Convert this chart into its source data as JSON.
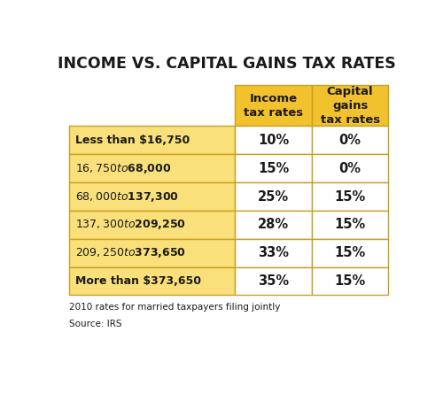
{
  "title": "INCOME VS. CAPITAL GAINS TAX RATES",
  "col_headers": [
    "Income\ntax rates",
    "Capital\ngains\ntax rates"
  ],
  "row_labels": [
    "Less than $16,750",
    "$16,750 to $68,000",
    "$68,000 to $137,300",
    "$137,300 to $209,250",
    "$209,250 to $373,650",
    "More than $373,650"
  ],
  "income_tax": [
    "10%",
    "15%",
    "25%",
    "28%",
    "33%",
    "35%"
  ],
  "capital_gains_tax": [
    "0%",
    "0%",
    "15%",
    "15%",
    "15%",
    "15%"
  ],
  "footnote": "2010 rates for married taxpayers filing jointly",
  "source": "Source: IRS",
  "bg_color": "#FFFFFF",
  "header_bg": "#F2C12E",
  "row_label_bg": "#F9E07A",
  "cell_bg": "#FFFFFF",
  "border_color": "#C8A020",
  "title_color": "#1A1A1A",
  "text_color": "#1A1A1A",
  "header_text_color": "#1A1A1A"
}
